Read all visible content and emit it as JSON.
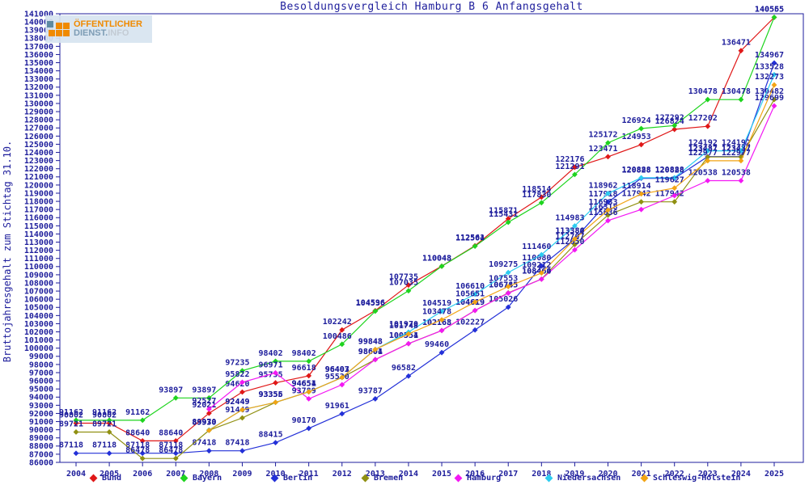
{
  "chart_data": {
    "type": "line",
    "title": "Besoldungsvergleich Hamburg B 6 Anfangsgehalt",
    "ylabel": "Bruttojahresgehalt zum Stichtag 31.10.",
    "ylim": [
      86000,
      141000
    ],
    "ytick_step": 1000,
    "grid": false,
    "legend_position": "bottom",
    "axis_color": "#1e1e9c",
    "label_color": "#1e1e9c",
    "categories": [
      "2004",
      "2005",
      "2006",
      "2007",
      "2008",
      "2009",
      "2010",
      "2011",
      "2012",
      "2013",
      "2014",
      "2015",
      "2016",
      "2017",
      "2018",
      "2019",
      "2020",
      "2021",
      "2022",
      "2023",
      "2024",
      "2025"
    ],
    "series": [
      {
        "name": "Bund",
        "color": "#e01818",
        "values": [
          90802,
          90802,
          88640,
          88640,
          92021,
          94620,
          95755,
          96618,
          102242,
          104596,
          107735,
          110048,
          112561,
          115871,
          118514,
          122176,
          123471,
          124953,
          126824,
          127202,
          136471,
          140555
        ]
      },
      {
        "name": "Bayern",
        "color": "#1ed41e",
        "values": [
          91162,
          91162,
          91162,
          93897,
          93897,
          97235,
          98402,
          98402,
          100486,
          104536,
          107035,
          110043,
          112504,
          115431,
          117830,
          121291,
          125172,
          126924,
          127292,
          130478,
          130478,
          140565
        ]
      },
      {
        "name": "Berlin",
        "color": "#2330d8",
        "values": [
          87118,
          87118,
          87118,
          87118,
          87418,
          87418,
          88415,
          90170,
          91961,
          93787,
          96582,
          99460,
          102227,
          105026,
          110080,
          113384,
          117918,
          120828,
          120828,
          123487,
          123487,
          134967
        ]
      },
      {
        "name": "Bremen",
        "color": "#909012",
        "values": [
          89721,
          89721,
          86478,
          86478,
          89930,
          91449,
          93355,
          94651,
          96403,
          98604,
          100554,
          102168,
          104619,
          106785,
          108464,
          112707,
          116318,
          117942,
          117942,
          123437,
          123437,
          130482
        ]
      },
      {
        "name": "Hamburg",
        "color": "#f318f3",
        "values": [
          null,
          null,
          null,
          null,
          92527,
          95822,
          96971,
          93789,
          95520,
          98601,
          100551,
          102163,
          104619,
          106745,
          108460,
          112050,
          115636,
          117000,
          118700,
          120538,
          120538,
          129699
        ]
      },
      {
        "name": "Niedersachsen",
        "color": "#2cccf0",
        "values": [
          null,
          null,
          null,
          null,
          89970,
          92449,
          93356,
          94654,
          96407,
          99848,
          101970,
          104519,
          106610,
          109275,
          111460,
          114983,
          118962,
          120888,
          120888,
          124192,
          124192,
          133528
        ]
      },
      {
        "name": "Schleswig-Holstein",
        "color": "#f2a414",
        "values": [
          null,
          null,
          null,
          null,
          89930,
          92449,
          93355,
          94651,
          96403,
          99843,
          101748,
          103478,
          105651,
          107553,
          109212,
          113380,
          116933,
          118914,
          119627,
          122977,
          122977,
          132273
        ]
      }
    ],
    "hidden_labels": [
      {
        "series": "Hamburg",
        "years": [
          "2021",
          "2022"
        ]
      }
    ]
  },
  "logo": {
    "line1": "ÖFFENTLICHER",
    "line2a": "DIENST.",
    "line2b": "INFO"
  }
}
